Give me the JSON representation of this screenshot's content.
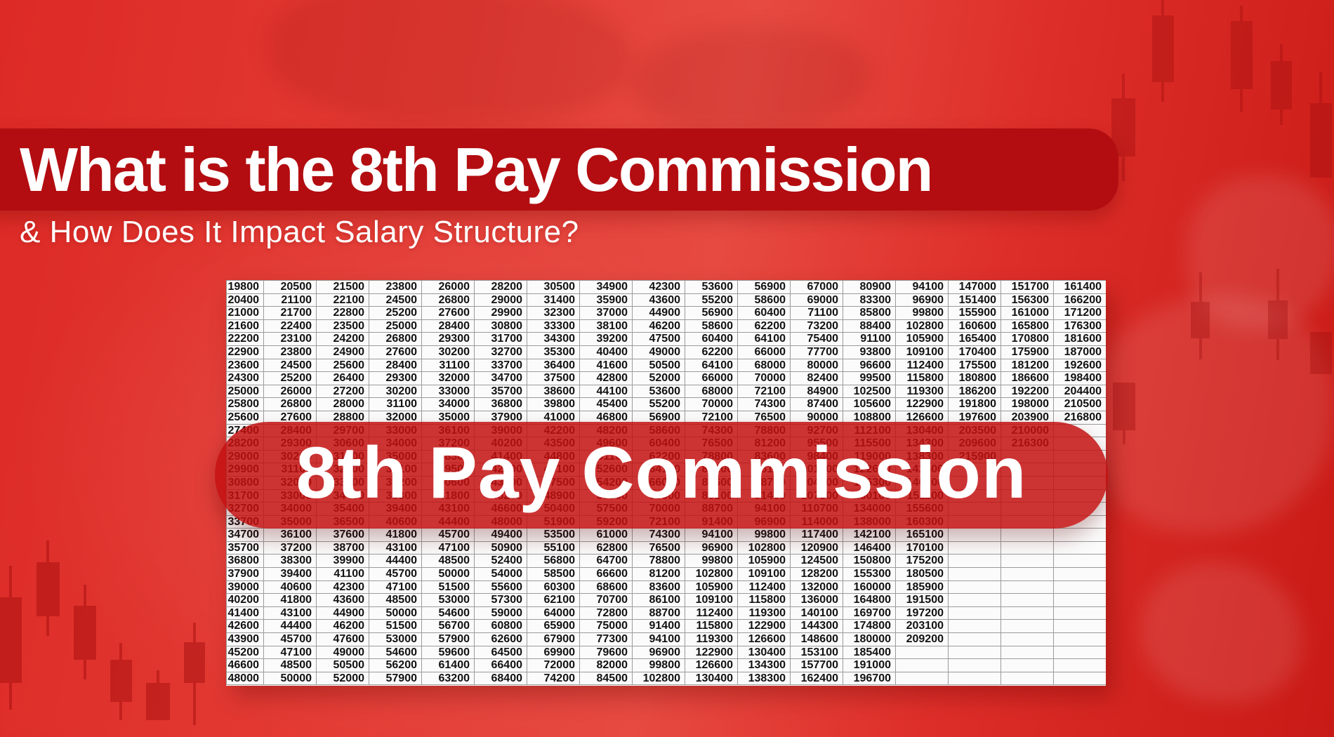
{
  "header": {
    "title": "What is the 8th Pay Commission",
    "subtitle": "& How Does It Impact Salary Structure?"
  },
  "overlay_banner": {
    "label": "8th Pay Commission"
  },
  "theme": {
    "bg-base": "#e13a33",
    "banner-dark": "#b30d11",
    "overlay-red": "rgba(195,16,16,0.85)",
    "text-white": "#ffffff",
    "table-text": "#111111",
    "grid-line": "#9b9b9b"
  },
  "table": {
    "columns": 17,
    "rows": [
      [
        "19800",
        "20500",
        "21500",
        "23800",
        "26000",
        "28200",
        "30500",
        "34900",
        "42300",
        "53600",
        "56900",
        "67000",
        "80900",
        "94100",
        "147000",
        "151700",
        "161400"
      ],
      [
        "20400",
        "21100",
        "22100",
        "24500",
        "26800",
        "29000",
        "31400",
        "35900",
        "43600",
        "55200",
        "58600",
        "69000",
        "83300",
        "96900",
        "151400",
        "156300",
        "166200"
      ],
      [
        "21000",
        "21700",
        "22800",
        "25200",
        "27600",
        "29900",
        "32300",
        "37000",
        "44900",
        "56900",
        "60400",
        "71100",
        "85800",
        "99800",
        "155900",
        "161000",
        "171200"
      ],
      [
        "21600",
        "22400",
        "23500",
        "25000",
        "28400",
        "30800",
        "33300",
        "38100",
        "46200",
        "58600",
        "62200",
        "73200",
        "88400",
        "102800",
        "160600",
        "165800",
        "176300"
      ],
      [
        "22200",
        "23100",
        "24200",
        "26800",
        "29300",
        "31700",
        "34300",
        "39200",
        "47500",
        "60400",
        "64100",
        "75400",
        "91100",
        "105900",
        "165400",
        "170800",
        "181600"
      ],
      [
        "22900",
        "23800",
        "24900",
        "27600",
        "30200",
        "32700",
        "35300",
        "40400",
        "49000",
        "62200",
        "66000",
        "77700",
        "93800",
        "109100",
        "170400",
        "175900",
        "187000"
      ],
      [
        "23600",
        "24500",
        "25600",
        "28400",
        "31100",
        "33700",
        "36400",
        "41600",
        "50500",
        "64100",
        "68000",
        "80000",
        "96600",
        "112400",
        "175500",
        "181200",
        "192600"
      ],
      [
        "24300",
        "25200",
        "26400",
        "29300",
        "32000",
        "34700",
        "37500",
        "42800",
        "52000",
        "66000",
        "70000",
        "82400",
        "99500",
        "115800",
        "180800",
        "186600",
        "198400"
      ],
      [
        "25000",
        "26000",
        "27200",
        "30200",
        "33000",
        "35700",
        "38600",
        "44100",
        "53600",
        "68000",
        "72100",
        "84900",
        "102500",
        "119300",
        "186200",
        "192200",
        "204400"
      ],
      [
        "25800",
        "26800",
        "28000",
        "31100",
        "34000",
        "36800",
        "39800",
        "45400",
        "55200",
        "70000",
        "74300",
        "87400",
        "105600",
        "122900",
        "191800",
        "198000",
        "210500"
      ],
      [
        "25600",
        "27600",
        "28800",
        "32000",
        "35000",
        "37900",
        "41000",
        "46800",
        "56900",
        "72100",
        "76500",
        "90000",
        "108800",
        "126600",
        "197600",
        "203900",
        "216800"
      ],
      [
        "27400",
        "28400",
        "29700",
        "33000",
        "36100",
        "39000",
        "42200",
        "48200",
        "58600",
        "74300",
        "78800",
        "92700",
        "112100",
        "130400",
        "203500",
        "210000",
        ""
      ],
      [
        "28200",
        "29300",
        "30600",
        "34000",
        "37200",
        "40200",
        "43500",
        "49600",
        "60400",
        "76500",
        "81200",
        "95500",
        "115500",
        "134300",
        "209600",
        "216300",
        ""
      ],
      [
        "29000",
        "30200",
        "31500",
        "35000",
        "38300",
        "41400",
        "44800",
        "51100",
        "62200",
        "78800",
        "83600",
        "98400",
        "119000",
        "138300",
        "215900",
        "",
        ""
      ],
      [
        "29900",
        "31100",
        "32400",
        "36100",
        "39500",
        "42600",
        "46100",
        "52600",
        "64100",
        "81200",
        "86100",
        "101400",
        "122600",
        "142400",
        "",
        "",
        ""
      ],
      [
        "30800",
        "32000",
        "33400",
        "37200",
        "40600",
        "43900",
        "47500",
        "54200",
        "66000",
        "83600",
        "88700",
        "104400",
        "126300",
        "146700",
        "",
        "",
        ""
      ],
      [
        "31700",
        "33000",
        "34400",
        "38300",
        "41800",
        "45200",
        "48900",
        "55800",
        "68000",
        "86100",
        "91400",
        "107500",
        "130100",
        "151100",
        "",
        "",
        ""
      ],
      [
        "32700",
        "34000",
        "35400",
        "39400",
        "43100",
        "46600",
        "50400",
        "57500",
        "70000",
        "88700",
        "94100",
        "110700",
        "134000",
        "155600",
        "",
        "",
        ""
      ],
      [
        "33700",
        "35000",
        "36500",
        "40600",
        "44400",
        "48000",
        "51900",
        "59200",
        "72100",
        "91400",
        "96900",
        "114000",
        "138000",
        "160300",
        "",
        "",
        ""
      ],
      [
        "34700",
        "36100",
        "37600",
        "41800",
        "45700",
        "49400",
        "53500",
        "61000",
        "74300",
        "94100",
        "99800",
        "117400",
        "142100",
        "165100",
        "",
        "",
        ""
      ],
      [
        "35700",
        "37200",
        "38700",
        "43100",
        "47100",
        "50900",
        "55100",
        "62800",
        "76500",
        "96900",
        "102800",
        "120900",
        "146400",
        "170100",
        "",
        "",
        ""
      ],
      [
        "36800",
        "38300",
        "39900",
        "44400",
        "48500",
        "52400",
        "56800",
        "64700",
        "78800",
        "99800",
        "105900",
        "124500",
        "150800",
        "175200",
        "",
        "",
        ""
      ],
      [
        "37900",
        "39400",
        "41100",
        "45700",
        "50000",
        "54000",
        "58500",
        "66600",
        "81200",
        "102800",
        "109100",
        "128200",
        "155300",
        "180500",
        "",
        "",
        ""
      ],
      [
        "39000",
        "40600",
        "42300",
        "47100",
        "51500",
        "55600",
        "60300",
        "68600",
        "83600",
        "105900",
        "112400",
        "132000",
        "160000",
        "185900",
        "",
        "",
        ""
      ],
      [
        "40200",
        "41800",
        "43600",
        "48500",
        "53000",
        "57300",
        "62100",
        "70700",
        "86100",
        "109100",
        "115800",
        "136000",
        "164800",
        "191500",
        "",
        "",
        ""
      ],
      [
        "41400",
        "43100",
        "44900",
        "50000",
        "54600",
        "59000",
        "64000",
        "72800",
        "88700",
        "112400",
        "119300",
        "140100",
        "169700",
        "197200",
        "",
        "",
        ""
      ],
      [
        "42600",
        "44400",
        "46200",
        "51500",
        "56700",
        "60800",
        "65900",
        "75000",
        "91400",
        "115800",
        "122900",
        "144300",
        "174800",
        "203100",
        "",
        "",
        ""
      ],
      [
        "43900",
        "45700",
        "47600",
        "53000",
        "57900",
        "62600",
        "67900",
        "77300",
        "94100",
        "119300",
        "126600",
        "148600",
        "180000",
        "209200",
        "",
        "",
        ""
      ],
      [
        "45200",
        "47100",
        "49000",
        "54600",
        "59600",
        "64500",
        "69900",
        "79600",
        "96900",
        "122900",
        "130400",
        "153100",
        "185400",
        "",
        "",
        "",
        " "
      ],
      [
        "46600",
        "48500",
        "50500",
        "56200",
        "61400",
        "66400",
        "72000",
        "82000",
        "99800",
        "126600",
        "134300",
        "157700",
        "191000",
        "",
        "",
        "",
        ""
      ],
      [
        "48000",
        "50000",
        "52000",
        "57900",
        "63200",
        "68400",
        "74200",
        "84500",
        "102800",
        "130400",
        "138300",
        "162400",
        "196700",
        "",
        "",
        "",
        ""
      ]
    ]
  }
}
